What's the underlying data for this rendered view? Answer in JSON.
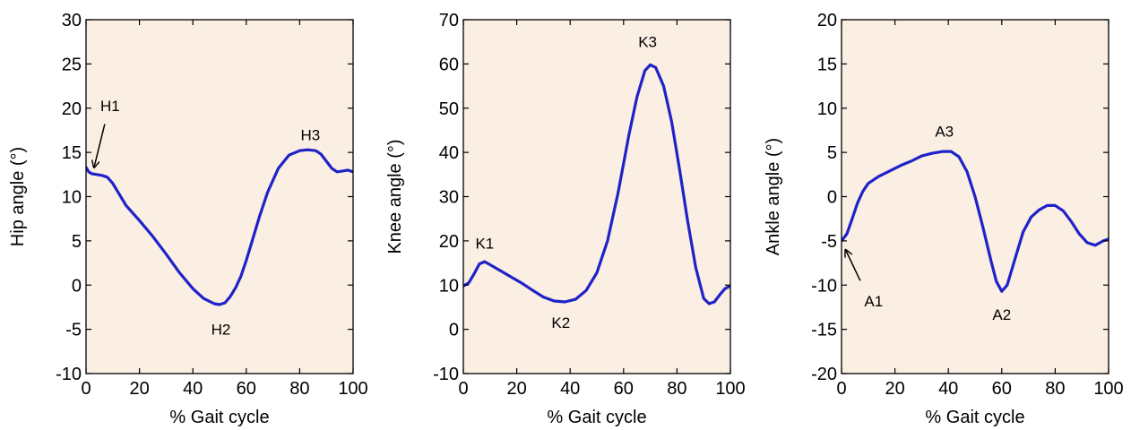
{
  "colors": {
    "plot_background": "#FBEEE2",
    "line": "#1E22C8",
    "axes": "#000000",
    "text": "#000000"
  },
  "chart_data": [
    {
      "type": "line",
      "xlabel": "% Gait cycle",
      "ylabel": "Hip angle (°)",
      "xlim": [
        0,
        100
      ],
      "ylim": [
        -10,
        30
      ],
      "xticks": [
        0,
        20,
        40,
        60,
        80,
        100
      ],
      "yticks": [
        -10,
        -5,
        0,
        5,
        10,
        15,
        20,
        25,
        30
      ],
      "grid": false,
      "series": [
        {
          "x": [
            0,
            1,
            2,
            4,
            6,
            8,
            10,
            15,
            20,
            25,
            30,
            35,
            40,
            44,
            48,
            50,
            52,
            54,
            56,
            58,
            60,
            62,
            65,
            68,
            72,
            76,
            80,
            83,
            86,
            88,
            90,
            92,
            94,
            96,
            98,
            100
          ],
          "y": [
            13.3,
            12.8,
            12.6,
            12.5,
            12.4,
            12.2,
            11.5,
            9.0,
            7.3,
            5.5,
            3.5,
            1.4,
            -0.4,
            -1.5,
            -2.1,
            -2.2,
            -2.0,
            -1.3,
            -0.3,
            1.0,
            2.8,
            4.8,
            7.8,
            10.5,
            13.2,
            14.7,
            15.2,
            15.3,
            15.2,
            14.8,
            14.0,
            13.2,
            12.8,
            12.9,
            13.0,
            12.8
          ]
        }
      ],
      "annotations": [
        {
          "text": "H1",
          "x": 9,
          "y": 20.3,
          "arrow": true,
          "arrow_from": [
            7,
            18.2
          ],
          "arrow_to": [
            3,
            13.3
          ]
        },
        {
          "text": "H2",
          "x": 50.5,
          "y": -5
        },
        {
          "text": "H3",
          "x": 84,
          "y": 17
        }
      ]
    },
    {
      "type": "line",
      "xlabel": "% Gait cycle",
      "ylabel": "Knee angle (°)",
      "xlim": [
        0,
        100
      ],
      "ylim": [
        -10,
        70
      ],
      "xticks": [
        0,
        20,
        40,
        60,
        80,
        100
      ],
      "yticks": [
        -10,
        0,
        10,
        20,
        30,
        40,
        50,
        60,
        70
      ],
      "grid": false,
      "series": [
        {
          "x": [
            0,
            2,
            4,
            6,
            8,
            10,
            14,
            18,
            22,
            26,
            30,
            34,
            38,
            42,
            46,
            50,
            54,
            58,
            62,
            65,
            68,
            70,
            72,
            75,
            78,
            81,
            84,
            87,
            90,
            92,
            94,
            96,
            98,
            100
          ],
          "y": [
            9.8,
            10.5,
            12.5,
            14.8,
            15.3,
            14.6,
            13.2,
            11.8,
            10.4,
            8.8,
            7.3,
            6.4,
            6.2,
            6.8,
            8.8,
            12.8,
            20.0,
            31.0,
            44.0,
            52.5,
            58.5,
            59.8,
            59.2,
            55.0,
            47.0,
            36.0,
            24.5,
            14.0,
            7.0,
            5.8,
            6.2,
            7.8,
            9.2,
            9.8
          ]
        }
      ],
      "annotations": [
        {
          "text": "K1",
          "x": 8,
          "y": 19.5
        },
        {
          "text": "K2",
          "x": 36.5,
          "y": 1.5
        },
        {
          "text": "K3",
          "x": 69,
          "y": 65
        }
      ]
    },
    {
      "type": "line",
      "xlabel": "% Gait cycle",
      "ylabel": "Ankle angle (°)",
      "xlim": [
        0,
        100
      ],
      "ylim": [
        -20,
        20
      ],
      "xticks": [
        0,
        20,
        40,
        60,
        80,
        100
      ],
      "yticks": [
        -20,
        -15,
        -10,
        -5,
        0,
        5,
        10,
        15,
        20
      ],
      "grid": false,
      "series": [
        {
          "x": [
            0,
            2,
            4,
            6,
            8,
            10,
            14,
            18,
            22,
            26,
            30,
            34,
            38,
            41,
            44,
            47,
            50,
            53,
            56,
            58,
            60,
            62,
            65,
            68,
            71,
            74,
            77,
            80,
            83,
            86,
            89,
            92,
            95,
            98,
            100
          ],
          "y": [
            -5.0,
            -4.2,
            -2.5,
            -0.7,
            0.6,
            1.5,
            2.3,
            2.9,
            3.5,
            4.0,
            4.6,
            4.9,
            5.1,
            5.1,
            4.5,
            2.8,
            0.0,
            -3.5,
            -7.3,
            -9.6,
            -10.7,
            -10.0,
            -7.0,
            -4.0,
            -2.3,
            -1.5,
            -1.0,
            -1.0,
            -1.6,
            -2.8,
            -4.2,
            -5.2,
            -5.5,
            -5.0,
            -4.8
          ]
        }
      ],
      "annotations": [
        {
          "text": "A1",
          "x": 12,
          "y": -11.8,
          "arrow": true,
          "arrow_from": [
            7,
            -9.5
          ],
          "arrow_to": [
            1.5,
            -6
          ]
        },
        {
          "text": "A2",
          "x": 60,
          "y": -13.3
        },
        {
          "text": "A3",
          "x": 38.5,
          "y": 7.4
        }
      ]
    }
  ]
}
